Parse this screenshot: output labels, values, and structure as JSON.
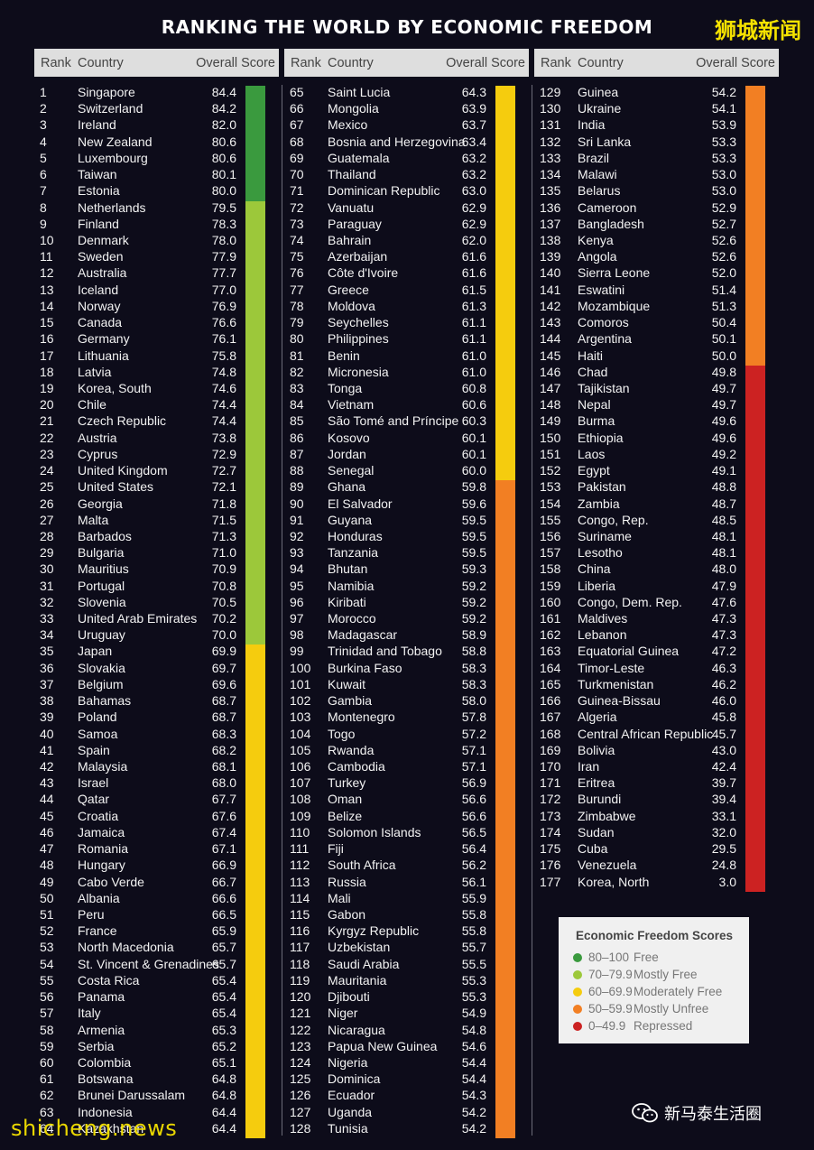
{
  "title": "RANKING THE WORLD BY ECONOMIC FREEDOM",
  "brand": "狮城新闻",
  "columns": {
    "rank": "Rank",
    "country": "Country",
    "score": "Overall Score"
  },
  "colors": {
    "free": "#3a9a3e",
    "mostly_free": "#9cc83a",
    "moderately_free": "#f5cc0e",
    "mostly_unfree": "#f27f23",
    "repressed": "#cc2222"
  },
  "rows": [
    [
      "1",
      "Singapore",
      "84.4"
    ],
    [
      "2",
      "Switzerland",
      "84.2"
    ],
    [
      "3",
      "Ireland",
      "82.0"
    ],
    [
      "4",
      "New Zealand",
      "80.6"
    ],
    [
      "5",
      "Luxembourg",
      "80.6"
    ],
    [
      "6",
      "Taiwan",
      "80.1"
    ],
    [
      "7",
      "Estonia",
      "80.0"
    ],
    [
      "8",
      "Netherlands",
      "79.5"
    ],
    [
      "9",
      "Finland",
      "78.3"
    ],
    [
      "10",
      "Denmark",
      "78.0"
    ],
    [
      "11",
      "Sweden",
      "77.9"
    ],
    [
      "12",
      "Australia",
      "77.7"
    ],
    [
      "13",
      "Iceland",
      "77.0"
    ],
    [
      "14",
      "Norway",
      "76.9"
    ],
    [
      "15",
      "Canada",
      "76.6"
    ],
    [
      "16",
      "Germany",
      "76.1"
    ],
    [
      "17",
      "Lithuania",
      "75.8"
    ],
    [
      "18",
      "Latvia",
      "74.8"
    ],
    [
      "19",
      "Korea, South",
      "74.6"
    ],
    [
      "20",
      "Chile",
      "74.4"
    ],
    [
      "21",
      "Czech Republic",
      "74.4"
    ],
    [
      "22",
      "Austria",
      "73.8"
    ],
    [
      "23",
      "Cyprus",
      "72.9"
    ],
    [
      "24",
      "United Kingdom",
      "72.7"
    ],
    [
      "25",
      "United States",
      "72.1"
    ],
    [
      "26",
      "Georgia",
      "71.8"
    ],
    [
      "27",
      "Malta",
      "71.5"
    ],
    [
      "28",
      "Barbados",
      "71.3"
    ],
    [
      "29",
      "Bulgaria",
      "71.0"
    ],
    [
      "30",
      "Mauritius",
      "70.9"
    ],
    [
      "31",
      "Portugal",
      "70.8"
    ],
    [
      "32",
      "Slovenia",
      "70.5"
    ],
    [
      "33",
      "United Arab Emirates",
      "70.2"
    ],
    [
      "34",
      "Uruguay",
      "70.0"
    ],
    [
      "35",
      "Japan",
      "69.9"
    ],
    [
      "36",
      "Slovakia",
      "69.7"
    ],
    [
      "37",
      "Belgium",
      "69.6"
    ],
    [
      "38",
      "Bahamas",
      "68.7"
    ],
    [
      "39",
      "Poland",
      "68.7"
    ],
    [
      "40",
      "Samoa",
      "68.3"
    ],
    [
      "41",
      "Spain",
      "68.2"
    ],
    [
      "42",
      "Malaysia",
      "68.1"
    ],
    [
      "43",
      "Israel",
      "68.0"
    ],
    [
      "44",
      "Qatar",
      "67.7"
    ],
    [
      "45",
      "Croatia",
      "67.6"
    ],
    [
      "46",
      "Jamaica",
      "67.4"
    ],
    [
      "47",
      "Romania",
      "67.1"
    ],
    [
      "48",
      "Hungary",
      "66.9"
    ],
    [
      "49",
      "Cabo Verde",
      "66.7"
    ],
    [
      "50",
      "Albania",
      "66.6"
    ],
    [
      "51",
      "Peru",
      "66.5"
    ],
    [
      "52",
      "France",
      "65.9"
    ],
    [
      "53",
      "North Macedonia",
      "65.7"
    ],
    [
      "54",
      "St. Vincent & Grenadines",
      "65.7"
    ],
    [
      "55",
      "Costa Rica",
      "65.4"
    ],
    [
      "56",
      "Panama",
      "65.4"
    ],
    [
      "57",
      "Italy",
      "65.4"
    ],
    [
      "58",
      "Armenia",
      "65.3"
    ],
    [
      "59",
      "Serbia",
      "65.2"
    ],
    [
      "60",
      "Colombia",
      "65.1"
    ],
    [
      "61",
      "Botswana",
      "64.8"
    ],
    [
      "62",
      "Brunei Darussalam",
      "64.8"
    ],
    [
      "63",
      "Indonesia",
      "64.4"
    ],
    [
      "64",
      "Kazakhstan",
      "64.4"
    ],
    [
      "65",
      "Saint Lucia",
      "64.3"
    ],
    [
      "66",
      "Mongolia",
      "63.9"
    ],
    [
      "67",
      "Mexico",
      "63.7"
    ],
    [
      "68",
      "Bosnia and Herzegovina",
      "63.4"
    ],
    [
      "69",
      "Guatemala",
      "63.2"
    ],
    [
      "70",
      "Thailand",
      "63.2"
    ],
    [
      "71",
      "Dominican Republic",
      "63.0"
    ],
    [
      "72",
      "Vanuatu",
      "62.9"
    ],
    [
      "73",
      "Paraguay",
      "62.9"
    ],
    [
      "74",
      "Bahrain",
      "62.0"
    ],
    [
      "75",
      "Azerbaijan",
      "61.6"
    ],
    [
      "76",
      "Côte d'Ivoire",
      "61.6"
    ],
    [
      "77",
      "Greece",
      "61.5"
    ],
    [
      "78",
      "Moldova",
      "61.3"
    ],
    [
      "79",
      "Seychelles",
      "61.1"
    ],
    [
      "80",
      "Philippines",
      "61.1"
    ],
    [
      "81",
      "Benin",
      "61.0"
    ],
    [
      "82",
      "Micronesia",
      "61.0"
    ],
    [
      "83",
      "Tonga",
      "60.8"
    ],
    [
      "84",
      "Vietnam",
      "60.6"
    ],
    [
      "85",
      "São Tomé and Príncipe",
      "60.3"
    ],
    [
      "86",
      "Kosovo",
      "60.1"
    ],
    [
      "87",
      "Jordan",
      "60.1"
    ],
    [
      "88",
      "Senegal",
      "60.0"
    ],
    [
      "89",
      "Ghana",
      "59.8"
    ],
    [
      "90",
      "El Salvador",
      "59.6"
    ],
    [
      "91",
      "Guyana",
      "59.5"
    ],
    [
      "92",
      "Honduras",
      "59.5"
    ],
    [
      "93",
      "Tanzania",
      "59.5"
    ],
    [
      "94",
      "Bhutan",
      "59.3"
    ],
    [
      "95",
      "Namibia",
      "59.2"
    ],
    [
      "96",
      "Kiribati",
      "59.2"
    ],
    [
      "97",
      "Morocco",
      "59.2"
    ],
    [
      "98",
      "Madagascar",
      "58.9"
    ],
    [
      "99",
      "Trinidad and Tobago",
      "58.8"
    ],
    [
      "100",
      "Burkina Faso",
      "58.3"
    ],
    [
      "101",
      "Kuwait",
      "58.3"
    ],
    [
      "102",
      "Gambia",
      "58.0"
    ],
    [
      "103",
      "Montenegro",
      "57.8"
    ],
    [
      "104",
      "Togo",
      "57.2"
    ],
    [
      "105",
      "Rwanda",
      "57.1"
    ],
    [
      "106",
      "Cambodia",
      "57.1"
    ],
    [
      "107",
      "Turkey",
      "56.9"
    ],
    [
      "108",
      "Oman",
      "56.6"
    ],
    [
      "109",
      "Belize",
      "56.6"
    ],
    [
      "110",
      "Solomon Islands",
      "56.5"
    ],
    [
      "111",
      "Fiji",
      "56.4"
    ],
    [
      "112",
      "South Africa",
      "56.2"
    ],
    [
      "113",
      "Russia",
      "56.1"
    ],
    [
      "114",
      "Mali",
      "55.9"
    ],
    [
      "115",
      "Gabon",
      "55.8"
    ],
    [
      "116",
      "Kyrgyz Republic",
      "55.8"
    ],
    [
      "117",
      "Uzbekistan",
      "55.7"
    ],
    [
      "118",
      "Saudi Arabia",
      "55.5"
    ],
    [
      "119",
      "Mauritania",
      "55.3"
    ],
    [
      "120",
      "Djibouti",
      "55.3"
    ],
    [
      "121",
      "Niger",
      "54.9"
    ],
    [
      "122",
      "Nicaragua",
      "54.8"
    ],
    [
      "123",
      "Papua New Guinea",
      "54.6"
    ],
    [
      "124",
      "Nigeria",
      "54.4"
    ],
    [
      "125",
      "Dominica",
      "54.4"
    ],
    [
      "126",
      "Ecuador",
      "54.3"
    ],
    [
      "127",
      "Uganda",
      "54.2"
    ],
    [
      "128",
      "Tunisia",
      "54.2"
    ],
    [
      "129",
      "Guinea",
      "54.2"
    ],
    [
      "130",
      "Ukraine",
      "54.1"
    ],
    [
      "131",
      "India",
      "53.9"
    ],
    [
      "132",
      "Sri Lanka",
      "53.3"
    ],
    [
      "133",
      "Brazil",
      "53.3"
    ],
    [
      "134",
      "Malawi",
      "53.0"
    ],
    [
      "135",
      "Belarus",
      "53.0"
    ],
    [
      "136",
      "Cameroon",
      "52.9"
    ],
    [
      "137",
      "Bangladesh",
      "52.7"
    ],
    [
      "138",
      "Kenya",
      "52.6"
    ],
    [
      "139",
      "Angola",
      "52.6"
    ],
    [
      "140",
      "Sierra Leone",
      "52.0"
    ],
    [
      "141",
      "Eswatini",
      "51.4"
    ],
    [
      "142",
      "Mozambique",
      "51.3"
    ],
    [
      "143",
      "Comoros",
      "50.4"
    ],
    [
      "144",
      "Argentina",
      "50.1"
    ],
    [
      "145",
      "Haiti",
      "50.0"
    ],
    [
      "146",
      "Chad",
      "49.8"
    ],
    [
      "147",
      "Tajikistan",
      "49.7"
    ],
    [
      "148",
      "Nepal",
      "49.7"
    ],
    [
      "149",
      "Burma",
      "49.6"
    ],
    [
      "150",
      "Ethiopia",
      "49.6"
    ],
    [
      "151",
      "Laos",
      "49.2"
    ],
    [
      "152",
      "Egypt",
      "49.1"
    ],
    [
      "153",
      "Pakistan",
      "48.8"
    ],
    [
      "154",
      "Zambia",
      "48.7"
    ],
    [
      "155",
      "Congo, Rep.",
      "48.5"
    ],
    [
      "156",
      "Suriname",
      "48.1"
    ],
    [
      "157",
      "Lesotho",
      "48.1"
    ],
    [
      "158",
      "China",
      "48.0"
    ],
    [
      "159",
      "Liberia",
      "47.9"
    ],
    [
      "160",
      "Congo, Dem. Rep.",
      "47.6"
    ],
    [
      "161",
      "Maldives",
      "47.3"
    ],
    [
      "162",
      "Lebanon",
      "47.3"
    ],
    [
      "163",
      "Equatorial Guinea",
      "47.2"
    ],
    [
      "164",
      "Timor-Leste",
      "46.3"
    ],
    [
      "165",
      "Turkmenistan",
      "46.2"
    ],
    [
      "166",
      "Guinea-Bissau",
      "46.0"
    ],
    [
      "167",
      "Algeria",
      "45.8"
    ],
    [
      "168",
      "Central African Republic",
      "45.7"
    ],
    [
      "169",
      "Bolivia",
      "43.0"
    ],
    [
      "170",
      "Iran",
      "42.4"
    ],
    [
      "171",
      "Eritrea",
      "39.7"
    ],
    [
      "172",
      "Burundi",
      "39.4"
    ],
    [
      "173",
      "Zimbabwe",
      "33.1"
    ],
    [
      "174",
      "Sudan",
      "32.0"
    ],
    [
      "175",
      "Cuba",
      "29.5"
    ],
    [
      "176",
      "Venezuela",
      "24.8"
    ],
    [
      "177",
      "Korea, North",
      "3.0"
    ]
  ],
  "legend": {
    "title": "Economic Freedom Scores",
    "items": [
      {
        "range": "80–100",
        "label": "Free",
        "color": "#3a9a3e"
      },
      {
        "range": "70–79.9",
        "label": "Mostly Free",
        "color": "#9cc83a"
      },
      {
        "range": "60–69.9",
        "label": "Moderately Free",
        "color": "#f5cc0e"
      },
      {
        "range": "50–59.9",
        "label": "Mostly Unfree",
        "color": "#f27f23"
      },
      {
        "range": "0–49.9",
        "label": "Repressed",
        "color": "#cc2222"
      }
    ]
  },
  "wechat_label": "新马泰生活圈",
  "wechat_icon": "wechat-icon",
  "watermark": "shicheng.news"
}
